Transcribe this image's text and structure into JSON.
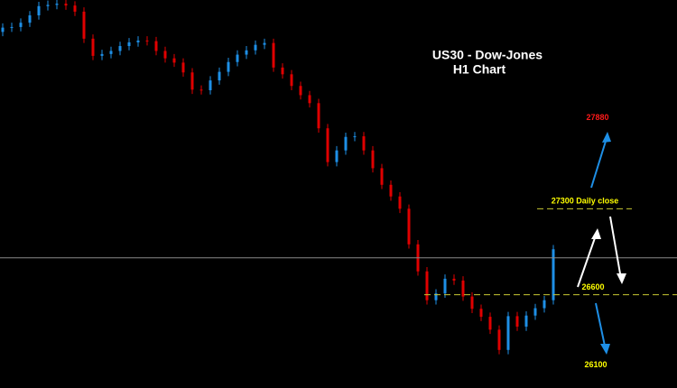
{
  "chart_data": {
    "type": "candlestick",
    "title": "US30 - Dow-Jones",
    "subtitle": "H1 Chart",
    "ylim": [
      25840,
      29000
    ],
    "up_color": "#1e8fe6",
    "down_color": "#e00000",
    "open": [
      28740,
      28775,
      28780,
      28815,
      28875,
      28950,
      28960,
      28970,
      28955,
      28905,
      28685,
      28545,
      28560,
      28585,
      28625,
      28655,
      28670,
      28665,
      28585,
      28525,
      28490,
      28410,
      28270,
      28265,
      28345,
      28415,
      28495,
      28555,
      28590,
      28635,
      28650,
      28450,
      28395,
      28300,
      28225,
      28160,
      27955,
      27680,
      27775,
      27885,
      27890,
      27775,
      27630,
      27495,
      27400,
      27300,
      27010,
      26790,
      26555,
      26610,
      26730,
      26715,
      26585,
      26485,
      26420,
      26315,
      26150,
      26425,
      26340,
      26430,
      26490,
      26555
    ],
    "high": [
      28810,
      28815,
      28850,
      28910,
      28985,
      28995,
      29000,
      29000,
      28990,
      28940,
      28720,
      28595,
      28620,
      28660,
      28690,
      28705,
      28705,
      28700,
      28620,
      28560,
      28525,
      28445,
      28305,
      28380,
      28450,
      28530,
      28590,
      28625,
      28670,
      28685,
      28685,
      28485,
      28430,
      28335,
      28260,
      28195,
      27990,
      27810,
      27920,
      27925,
      27925,
      27810,
      27665,
      27530,
      27435,
      27335,
      27045,
      26825,
      26645,
      26765,
      26765,
      26750,
      26620,
      26520,
      26455,
      26350,
      26460,
      26460,
      26465,
      26525,
      26590,
      27005
    ],
    "low": [
      28705,
      28740,
      28745,
      28780,
      28840,
      28915,
      28925,
      28920,
      28870,
      28650,
      28510,
      28510,
      28525,
      28550,
      28590,
      28620,
      28630,
      28550,
      28490,
      28455,
      28375,
      28235,
      28230,
      28230,
      28310,
      28380,
      28460,
      28520,
      28555,
      28600,
      28415,
      28360,
      28265,
      28190,
      28125,
      27920,
      27645,
      27645,
      27740,
      27850,
      27740,
      27595,
      27460,
      27365,
      27265,
      26975,
      26755,
      26520,
      26520,
      26575,
      26680,
      26550,
      26450,
      26385,
      26280,
      26115,
      26115,
      26305,
      26305,
      26395,
      26455,
      26520
    ],
    "close": [
      28775,
      28780,
      28815,
      28875,
      28950,
      28960,
      28970,
      28955,
      28905,
      28685,
      28545,
      28560,
      28585,
      28625,
      28655,
      28670,
      28665,
      28585,
      28525,
      28490,
      28410,
      28270,
      28265,
      28345,
      28415,
      28495,
      28555,
      28590,
      28635,
      28650,
      28450,
      28395,
      28300,
      28225,
      28160,
      27955,
      27680,
      27775,
      27885,
      27890,
      27775,
      27630,
      27495,
      27400,
      27300,
      27010,
      26790,
      26555,
      26610,
      26730,
      26715,
      26585,
      26485,
      26420,
      26315,
      26150,
      26425,
      26340,
      26430,
      26490,
      26555,
      26970
    ],
    "levels": [
      {
        "value": 26900,
        "color": "#8a8a8a",
        "dashed": false
      },
      {
        "value": 27300,
        "color": "#c8c832",
        "dashed": true
      },
      {
        "value": 26600,
        "color": "#c8c832",
        "dashed": true
      }
    ],
    "annotations": [
      {
        "value": 27880,
        "label": "27880",
        "color": "#ff1a1a"
      },
      {
        "value": 27300,
        "label": "27300 Daily close",
        "color": "#ffff00"
      },
      {
        "value": 26600,
        "label": "26600",
        "color": "#ffff00"
      },
      {
        "value": 26100,
        "label": "26100",
        "color": "#ffff00"
      }
    ]
  }
}
